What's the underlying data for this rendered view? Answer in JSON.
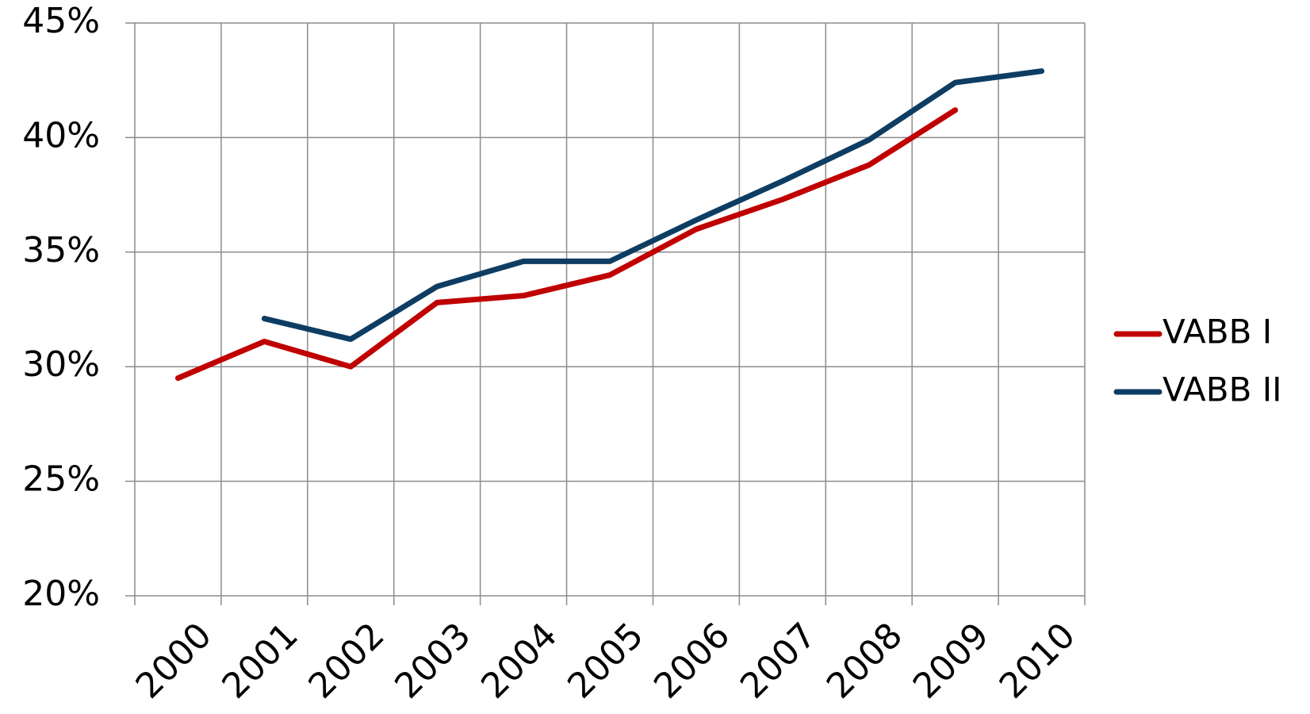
{
  "chart_data": {
    "type": "line",
    "categories": [
      "2000",
      "2001",
      "2002",
      "2003",
      "2004",
      "2005",
      "2006",
      "2007",
      "2008",
      "2009",
      "2010"
    ],
    "series": [
      {
        "name": "VABB I",
        "color": "#c00000",
        "values": [
          29.5,
          31.1,
          30.0,
          32.8,
          33.1,
          34.0,
          36.0,
          37.3,
          38.8,
          41.2,
          null
        ]
      },
      {
        "name": "VABB II",
        "color": "#0e3d63",
        "values": [
          null,
          32.1,
          31.2,
          33.5,
          34.6,
          34.6,
          36.4,
          38.1,
          39.9,
          42.4,
          42.9
        ]
      }
    ],
    "ylim": [
      20,
      45
    ],
    "yticks": [
      {
        "value": 20,
        "label": "20%"
      },
      {
        "value": 25,
        "label": "25%"
      },
      {
        "value": 30,
        "label": "30%"
      },
      {
        "value": 35,
        "label": "35%"
      },
      {
        "value": 40,
        "label": "40%"
      },
      {
        "value": 45,
        "label": "45%"
      }
    ],
    "grid": true,
    "legend": "right"
  }
}
